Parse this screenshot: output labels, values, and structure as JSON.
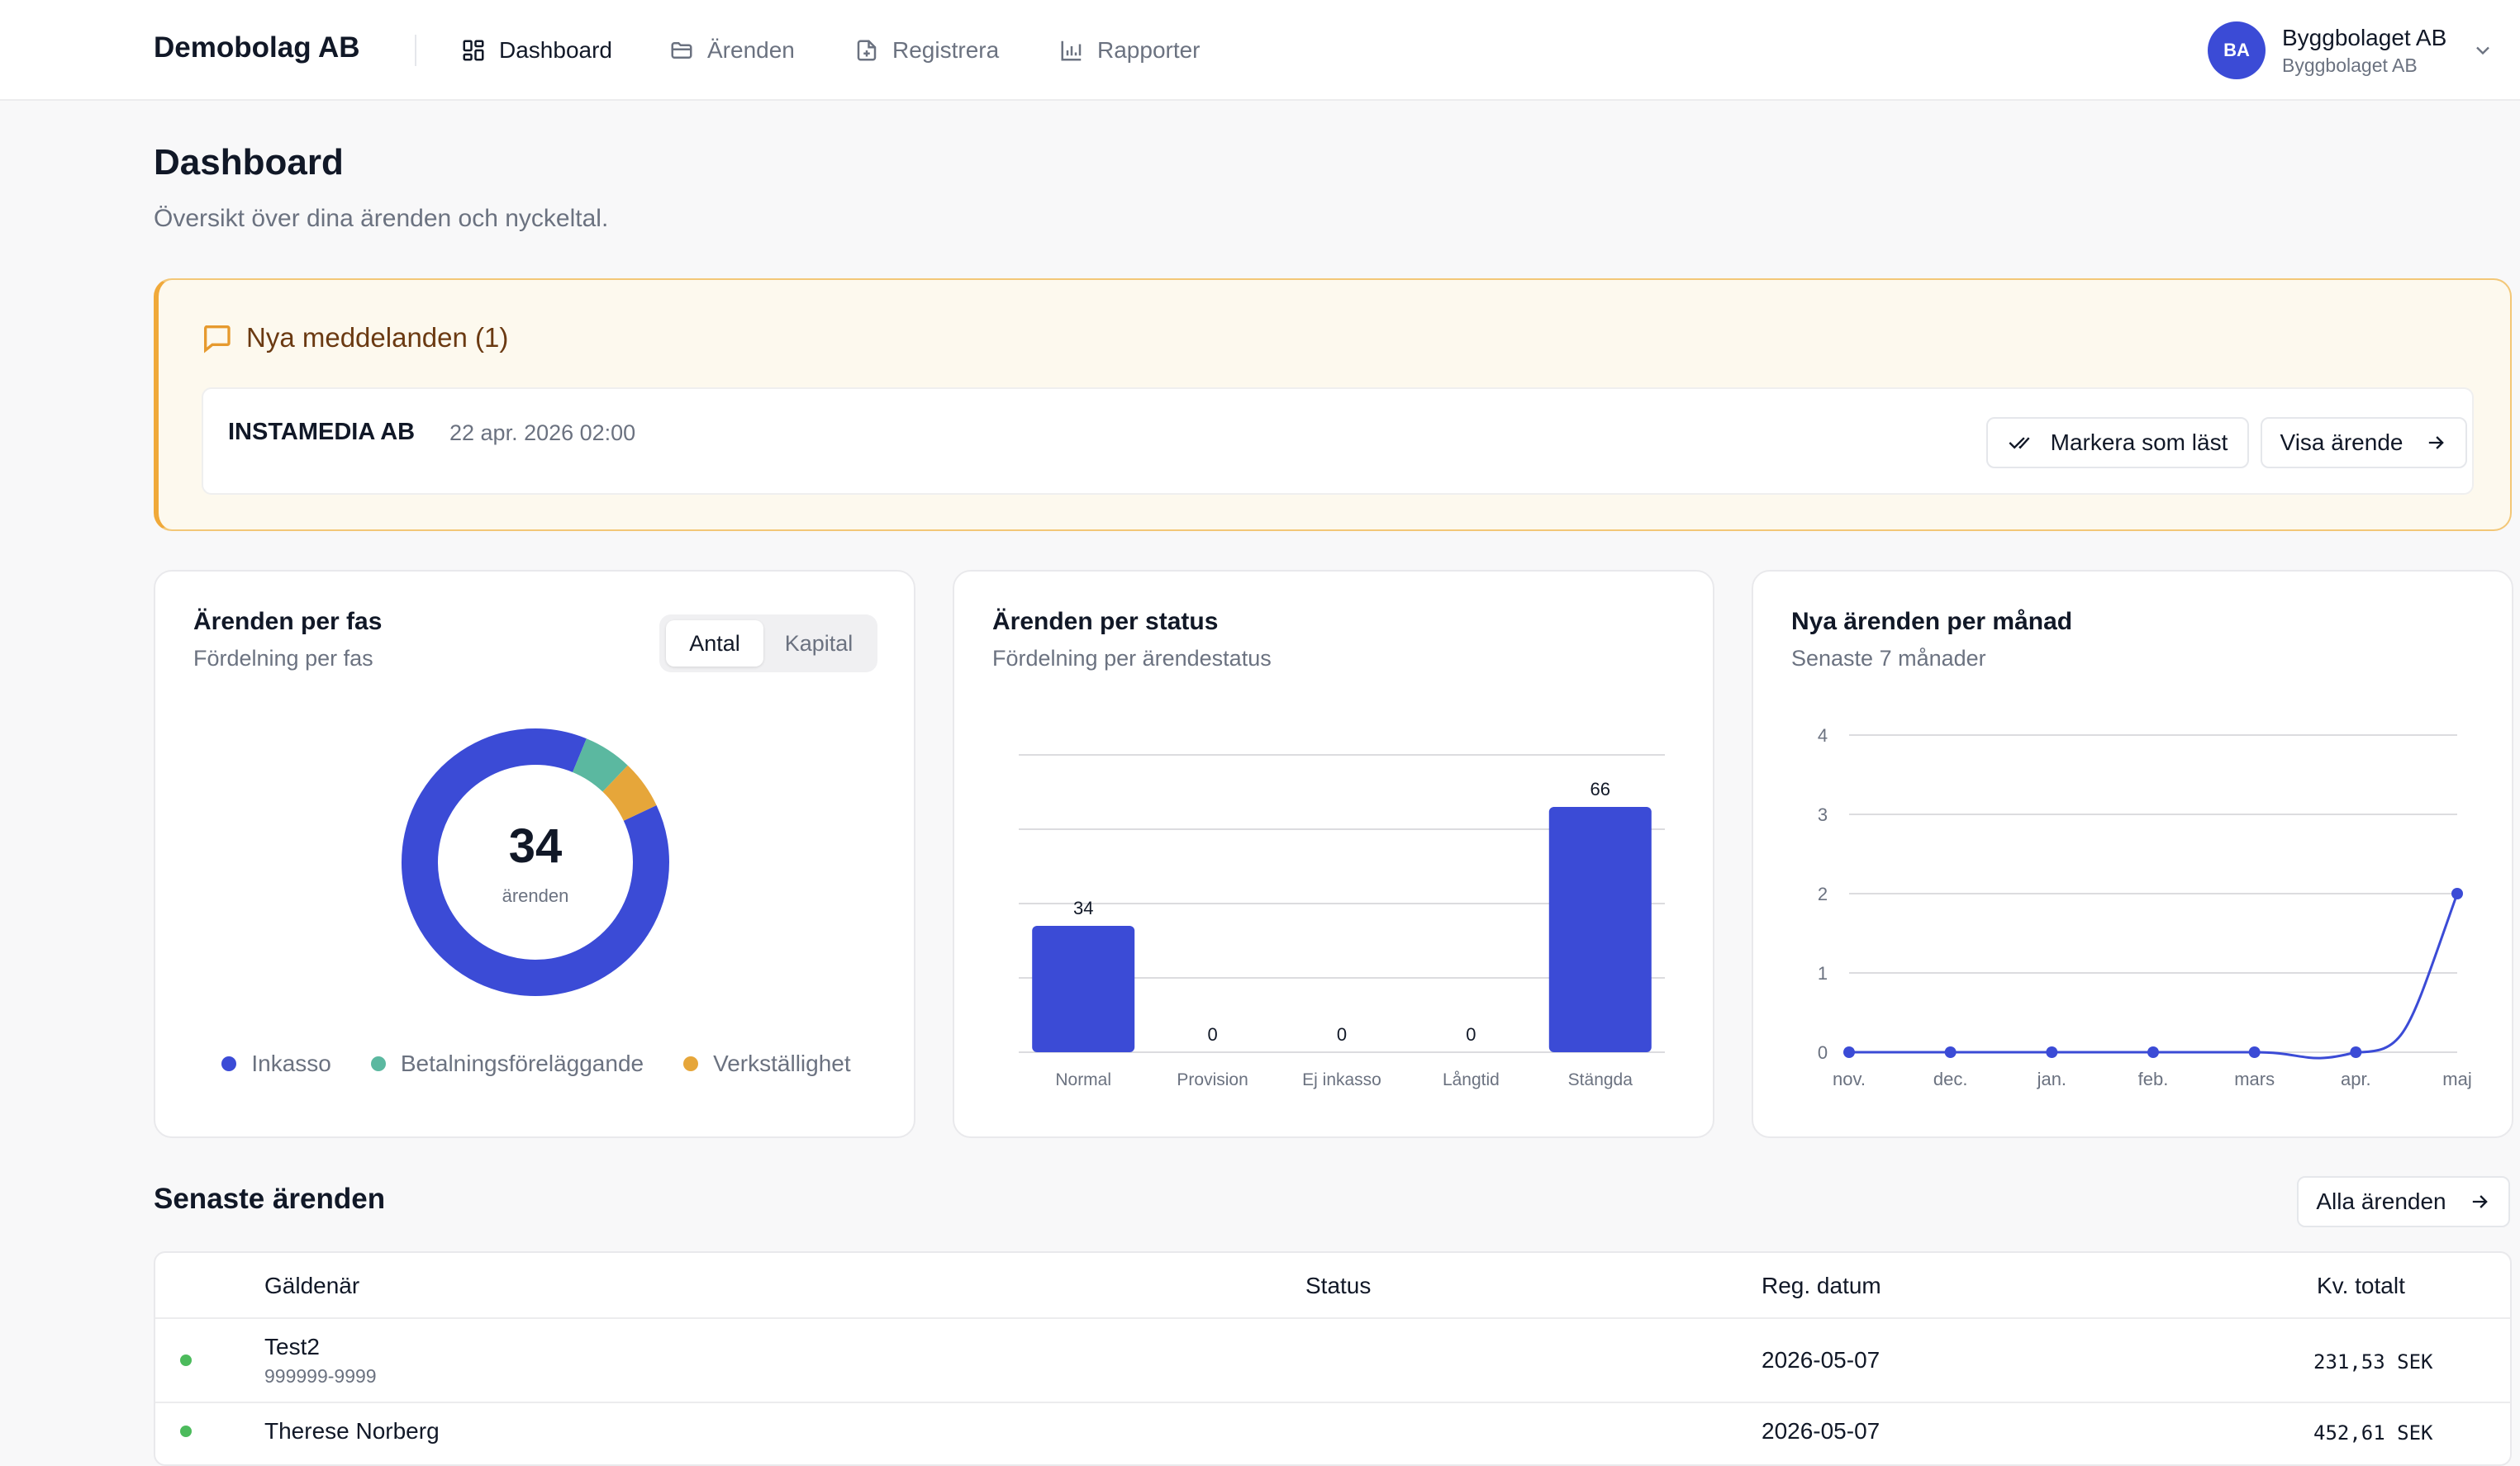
{
  "app": {
    "brand": "Demobolag AB"
  },
  "nav": {
    "items": [
      {
        "label": "Dashboard",
        "icon": "dashboard-grid-icon",
        "active": true
      },
      {
        "label": "Ärenden",
        "icon": "folder-icon",
        "active": false
      },
      {
        "label": "Registrera",
        "icon": "file-plus-icon",
        "active": false
      },
      {
        "label": "Rapporter",
        "icon": "bar-chart-icon",
        "active": false
      }
    ]
  },
  "user": {
    "initials": "BA",
    "name": "Byggbolaget AB",
    "company": "Byggbolaget AB"
  },
  "page": {
    "title": "Dashboard",
    "subtitle": "Översikt över dina ärenden och nyckeltal."
  },
  "messages": {
    "title": "Nya meddelanden (1)",
    "items": [
      {
        "sender": "INSTAMEDIA AB",
        "time": "22 apr. 2026 02:00",
        "mark_read_label": "Markera som läst",
        "view_label": "Visa ärende"
      }
    ]
  },
  "colors": {
    "primary": "#3b4bd6",
    "inkasso": "#3b4bd6",
    "betalning": "#5bb8a0",
    "verkstallighet": "#e6a63a",
    "status_ok": "#4cbb5c"
  },
  "phase_card": {
    "title": "Ärenden per fas",
    "subtitle": "Fördelning per fas",
    "toggle": [
      "Antal",
      "Kapital"
    ],
    "toggle_selected": "Antal",
    "center_value": "34",
    "center_label": "ärenden"
  },
  "status_card": {
    "title": "Ärenden per status",
    "subtitle": "Fördelning per ärendestatus"
  },
  "monthly_card": {
    "title": "Nya ärenden per månad",
    "subtitle": "Senaste 7 månader"
  },
  "chart_data": [
    {
      "type": "pie",
      "donut": true,
      "title": "Ärenden per fas",
      "categories": [
        "Inkasso",
        "Betalningsföreläggande",
        "Verkställighet"
      ],
      "values": [
        30,
        2,
        2
      ],
      "colors": [
        "#3b4bd6",
        "#5bb8a0",
        "#e6a63a"
      ],
      "legend": "bottom"
    },
    {
      "type": "bar",
      "title": "Ärenden per status",
      "categories": [
        "Normal",
        "Provision",
        "Ej inkasso",
        "Långtid",
        "Stängda"
      ],
      "values": [
        34,
        0,
        0,
        0,
        66
      ],
      "ylim": [
        0,
        80
      ],
      "grid": true
    },
    {
      "type": "line",
      "title": "Nya ärenden per månad",
      "x": [
        "nov.",
        "dec.",
        "jan.",
        "feb.",
        "mars",
        "apr.",
        "maj"
      ],
      "values": [
        0,
        0,
        0,
        0,
        0,
        0,
        2
      ],
      "yticks": [
        "0",
        "1",
        "2",
        "3",
        "4"
      ],
      "ylim": [
        0,
        4
      ],
      "grid": true
    }
  ],
  "recent": {
    "title": "Senaste ärenden",
    "all_label": "Alla ärenden",
    "columns": [
      "Gäldenär",
      "Status",
      "Reg. datum",
      "Kv. totalt"
    ],
    "rows": [
      {
        "name": "Test2",
        "id": "999999-9999",
        "status": "",
        "date": "2026-05-07",
        "amount": "231,53 SEK"
      },
      {
        "name": "Therese Norberg",
        "id": "",
        "status": "",
        "date": "2026-05-07",
        "amount": "452,61 SEK"
      }
    ]
  }
}
